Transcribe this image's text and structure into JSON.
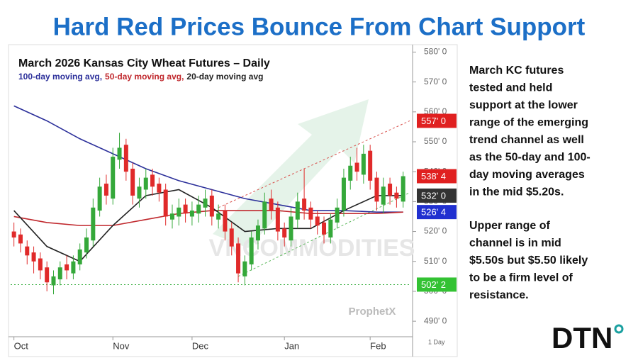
{
  "header": {
    "title": "Hard Red Prices Bounce From Chart Support"
  },
  "chart_data": {
    "type": "candlestick",
    "title": "March 2026 Kansas City Wheat Futures – Daily",
    "watermark": "VNCOMMODITIES",
    "brand": "ProphetX",
    "x_unit_label": "1 Day",
    "xlim": [
      -0.5,
      60
    ],
    "xticks": [
      {
        "value": 0,
        "label": "Oct"
      },
      {
        "value": 15,
        "label": "Nov"
      },
      {
        "value": 27,
        "label": "Dec"
      },
      {
        "value": 41,
        "label": "Jan"
      },
      {
        "value": 54,
        "label": "Feb"
      }
    ],
    "ylim": [
      486,
      582
    ],
    "yticks": [
      {
        "value": 490,
        "label": "490' 0"
      },
      {
        "value": 500,
        "label": "500' 0"
      },
      {
        "value": 510,
        "label": "510' 0"
      },
      {
        "value": 520,
        "label": "520' 0"
      },
      {
        "value": 530,
        "label": "530' 0"
      },
      {
        "value": 540,
        "label": "540' 0"
      },
      {
        "value": 550,
        "label": "550' 0"
      },
      {
        "value": 560,
        "label": "560' 0"
      },
      {
        "value": 570,
        "label": "570' 0"
      },
      {
        "value": 580,
        "label": "580' 0"
      }
    ],
    "up_color": "#35a83a",
    "down_color": "#e02a2a",
    "open": [
      520,
      519,
      515,
      513,
      511,
      508,
      502,
      504,
      509,
      506,
      509,
      513,
      517,
      527,
      536,
      531,
      544,
      549,
      541,
      531,
      534,
      539,
      536,
      534,
      524,
      525,
      529,
      525,
      526,
      528,
      532,
      524,
      527,
      521,
      516,
      505,
      509,
      517,
      521,
      531,
      528,
      521,
      517,
      524,
      531,
      528,
      525,
      523,
      518,
      523,
      527,
      537,
      543,
      539,
      547,
      538,
      529,
      536,
      533,
      530
    ],
    "high": [
      523,
      521,
      517,
      515,
      513,
      510,
      507,
      510,
      512,
      512,
      516,
      521,
      531,
      538,
      539,
      548,
      553,
      551,
      543,
      538,
      541,
      541,
      538,
      536,
      529,
      531,
      531,
      530,
      532,
      534,
      534,
      529,
      529,
      523,
      518,
      512,
      520,
      524,
      533,
      534,
      530,
      523,
      528,
      533,
      541,
      530,
      527,
      525,
      526,
      531,
      541,
      545,
      548,
      549,
      549,
      540,
      538,
      538,
      535,
      540
    ],
    "low": [
      515,
      513,
      509,
      506,
      504,
      500,
      499,
      502,
      504,
      504,
      507,
      511,
      515,
      525,
      529,
      529,
      541,
      537,
      529,
      528,
      531,
      532,
      530,
      522,
      521,
      522,
      523,
      522,
      523,
      525,
      522,
      521,
      517,
      512,
      503,
      502,
      507,
      514,
      519,
      524,
      517,
      515,
      515,
      521,
      524,
      521,
      519,
      516,
      516,
      521,
      525,
      534,
      537,
      536,
      534,
      527,
      526,
      529,
      528,
      528
    ],
    "close": [
      518,
      516,
      512,
      510,
      507,
      503,
      505,
      508,
      507,
      510,
      514,
      518,
      528,
      535,
      532,
      545,
      548,
      540,
      532,
      535,
      538,
      535,
      533,
      525,
      526,
      528,
      526,
      527,
      529,
      531,
      525,
      526,
      520,
      515,
      506,
      510,
      518,
      522,
      530,
      527,
      520,
      518,
      525,
      530,
      527,
      524,
      522,
      519,
      524,
      528,
      538,
      542,
      540,
      546,
      537,
      530,
      535,
      532,
      531,
      538.5
    ],
    "series": [
      {
        "name": "100-day moving avg,",
        "color": "#2b2f9a",
        "x": [
          0,
          5,
          10,
          15,
          20,
          25,
          30,
          35,
          40,
          45,
          50,
          55,
          59
        ],
        "values": [
          562,
          557,
          551,
          546,
          541,
          537,
          534,
          531,
          529,
          527,
          527,
          526.5,
          526.5
        ]
      },
      {
        "name": "50-day moving avg,",
        "color": "#c0282d",
        "x": [
          0,
          5,
          10,
          15,
          20,
          25,
          30,
          35,
          40,
          45,
          50,
          55,
          59
        ],
        "values": [
          525,
          523,
          522,
          522,
          524,
          526,
          527,
          527,
          527,
          526,
          526,
          526,
          526.5
        ]
      },
      {
        "name": "20-day moving avg",
        "color": "#222222",
        "x": [
          0,
          5,
          10,
          15,
          20,
          25,
          30,
          35,
          40,
          45,
          50,
          55,
          59
        ],
        "values": [
          527,
          515,
          510,
          522,
          532,
          534,
          528,
          520,
          521,
          521,
          527,
          532,
          532
        ]
      }
    ],
    "trend_lines": [
      {
        "color": "#d9534f",
        "x": [
          31,
          60
        ],
        "values": [
          528,
          557
        ]
      },
      {
        "color": "#5cb85c",
        "x": [
          34,
          60
        ],
        "values": [
          505,
          533
        ]
      }
    ],
    "support_level": {
      "value": 502.25,
      "color": "#3cb043"
    },
    "price_labels": [
      {
        "value": 557,
        "label": "557' 0",
        "color": "#e02020"
      },
      {
        "value": 538.5,
        "label": "538' 4",
        "color": "#e02020"
      },
      {
        "value": 532,
        "label": "532' 0",
        "color": "#333333"
      },
      {
        "value": 526.5,
        "label": "526' 4",
        "color": "#2030d0"
      },
      {
        "value": 502.25,
        "label": "502' 2",
        "color": "#33c233"
      }
    ]
  },
  "commentary": [
    [
      "March KC futures",
      "tested and held",
      "support at the lower",
      "range of the emerging",
      "trend channel as well",
      "as the 50-day and 100-",
      "day moving averages",
      "in the mid $5.20s."
    ],
    [
      "Upper range of",
      "channel is in mid",
      "$5.50s but $5.50 likely",
      "to be a firm level of",
      "resistance."
    ]
  ],
  "logo": "DTN"
}
